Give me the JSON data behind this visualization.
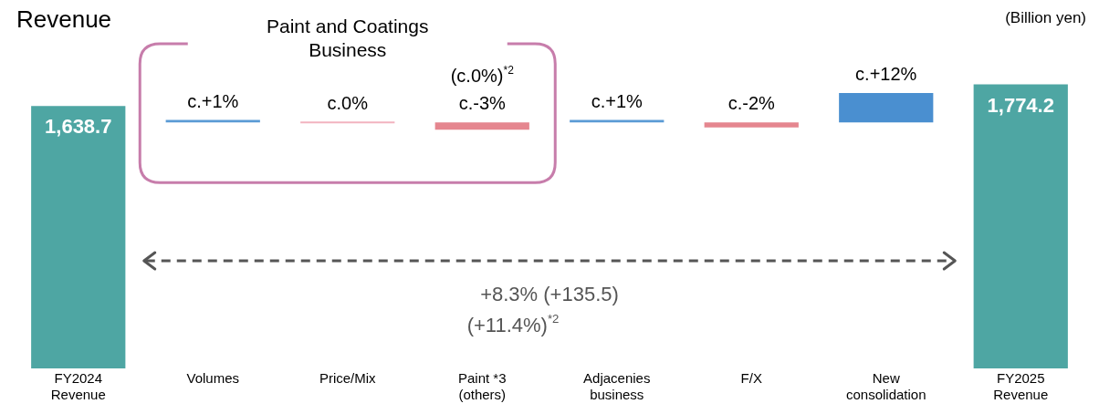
{
  "chart_data": {
    "type": "bar",
    "title": "Revenue",
    "ylabel": "(Billion yen)",
    "categories": [
      "FY2024 Revenue",
      "Volumes",
      "Price/Mix",
      "Paint *3 (others)",
      "Adjacenies business",
      "F/X",
      "New consolidation",
      "FY2025 Revenue"
    ],
    "series": [
      {
        "color": "#4ea6a3",
        "values": [
          1638.7,
          null,
          null,
          null,
          null,
          null,
          null,
          1774.2
        ],
        "value_labels": [
          "1,638.7",
          null,
          null,
          null,
          null,
          null,
          null,
          "1,774.2"
        ]
      },
      {
        "axis": "y2",
        "colors": [
          "#5b9bd5",
          "#5b9bd5",
          "#f2b3bf",
          "#e5868f",
          "#5b9bd5",
          "#e5868f",
          "#4a8fd0",
          "#5b9bd5"
        ],
        "values": [
          null,
          1,
          0,
          -3,
          1,
          -2,
          12,
          null
        ],
        "value_labels": [
          null,
          "c.+1%",
          "c.0%",
          "c.-3%",
          "c.+1%",
          "c.-2%",
          "c.+12%",
          null
        ]
      }
    ],
    "tick_labels": "x",
    "annotations": [
      "Paint and Coatings Business",
      "(c.0%)$^{*2}$",
      "+8.3% (+135.5)",
      "(+11.4%)$^{*2}$"
    ]
  }
}
